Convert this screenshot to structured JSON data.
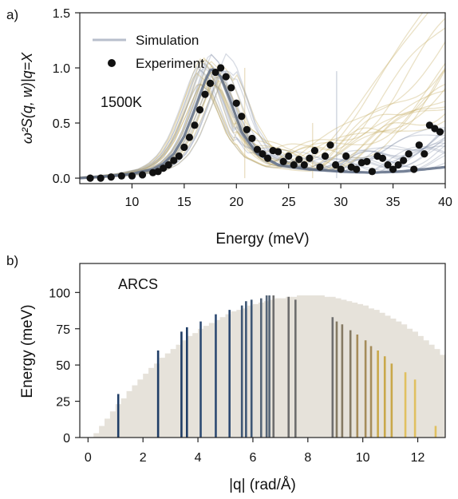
{
  "chart_data": [
    {
      "panel_label": "a)",
      "type": "line",
      "xlabel": "Energy (meV)",
      "ylabel": "ω²S(q, w)|q=X",
      "xlim": [
        5,
        40
      ],
      "ylim": [
        -0.05,
        1.5
      ],
      "xticks": [
        10,
        15,
        20,
        25,
        30,
        35,
        40
      ],
      "yticks": [
        0.0,
        0.5,
        1.0,
        1.5
      ],
      "ytick_labels": [
        "0.0",
        "0.5",
        "1.0",
        "1.5"
      ],
      "annotation": "1500K",
      "legend": {
        "position": "top-left",
        "entries": [
          {
            "label": "Simulation",
            "marker": "line",
            "color": "#b8bfcc"
          },
          {
            "label": "Experiment",
            "marker": "dot",
            "color": "#111111"
          }
        ]
      },
      "colors": {
        "blue_curves": "#8290a8",
        "gold_curves": "#c9b06a",
        "main_curve": "#5f6d86",
        "points": "#111111"
      },
      "series": [
        {
          "name": "Simulation",
          "x": [
            5,
            8,
            10,
            12,
            13,
            14,
            15,
            16,
            17,
            17.6,
            18.5,
            19.5,
            20.5,
            22,
            24,
            27,
            30,
            33,
            36,
            40
          ],
          "y": [
            0.0,
            0.02,
            0.04,
            0.08,
            0.13,
            0.22,
            0.38,
            0.62,
            0.88,
            1.0,
            0.92,
            0.68,
            0.42,
            0.22,
            0.12,
            0.08,
            0.06,
            0.05,
            0.06,
            0.1
          ]
        },
        {
          "name": "Experiment",
          "x": [
            6,
            7,
            8,
            9,
            10,
            11,
            12,
            12.5,
            13,
            13.5,
            14,
            14.5,
            15,
            15.5,
            16,
            16.5,
            17,
            17.5,
            18,
            18.5,
            19,
            19.5,
            20,
            20.5,
            21,
            21.5,
            22,
            22.5,
            23,
            23.5,
            24,
            24.5,
            25,
            25.5,
            26,
            26.5,
            27,
            27.5,
            28,
            28.5,
            29,
            29.5,
            30,
            30.5,
            31,
            31.5,
            32,
            32.5,
            33,
            33.5,
            34,
            34.5,
            35,
            35.5,
            36,
            36.5,
            37,
            37.5,
            38,
            38.5,
            39,
            39.5
          ],
          "y": [
            0.0,
            0.0,
            0.01,
            0.02,
            0.02,
            0.03,
            0.05,
            0.06,
            0.09,
            0.12,
            0.16,
            0.2,
            0.28,
            0.37,
            0.48,
            0.62,
            0.76,
            0.86,
            0.96,
            1.0,
            0.92,
            0.82,
            0.68,
            0.56,
            0.44,
            0.36,
            0.26,
            0.22,
            0.18,
            0.25,
            0.24,
            0.15,
            0.2,
            0.12,
            0.17,
            0.12,
            0.18,
            0.25,
            0.1,
            0.2,
            0.3,
            0.12,
            0.08,
            0.2,
            0.1,
            0.08,
            0.14,
            0.15,
            0.06,
            0.2,
            0.18,
            0.12,
            0.08,
            0.12,
            0.16,
            0.22,
            0.08,
            0.3,
            0.22,
            0.48,
            0.45,
            0.42
          ]
        }
      ]
    },
    {
      "panel_label": "b)",
      "type": "bar",
      "xlabel": "|q| (rad/Å)",
      "ylabel": "Energy (meV)",
      "xlim": [
        -0.3,
        13
      ],
      "ylim": [
        0,
        120
      ],
      "xticks": [
        0,
        2,
        4,
        6,
        8,
        10,
        12
      ],
      "yticks": [
        0,
        25,
        50,
        75,
        100
      ],
      "annotation": "ARCS",
      "coverage_color": "#e6e2da",
      "coverage": {
        "x_start": 0.2,
        "x_step": 0.2,
        "values": [
          3,
          8,
          13,
          18,
          23,
          27,
          32,
          36,
          40,
          44,
          48,
          51,
          55,
          58,
          61,
          64,
          67,
          70,
          72,
          75,
          77,
          79,
          81,
          83,
          85,
          87,
          88,
          89,
          91,
          92,
          93,
          94,
          95,
          96,
          96,
          97,
          97,
          98,
          98,
          98,
          98,
          98,
          97,
          97,
          96,
          95,
          94,
          93,
          92,
          91,
          89,
          88,
          86,
          84,
          82,
          80,
          78,
          75,
          73,
          70,
          67,
          64,
          61,
          57,
          53,
          50,
          46,
          42,
          37,
          32,
          27,
          22,
          17,
          11,
          6,
          3
        ]
      },
      "lines": {
        "colors": [
          "#1f3d66",
          "#2d4a72",
          "#3f5876",
          "#556578",
          "#6e6e6e",
          "#857a64",
          "#a58c5a",
          "#c9a84a",
          "#e0c060"
        ],
        "x": [
          1.1,
          2.55,
          3.4,
          3.6,
          4.1,
          4.65,
          5.15,
          5.6,
          5.75,
          5.95,
          6.3,
          6.5,
          6.6,
          6.75,
          7.3,
          7.55,
          8.9,
          9.05,
          9.25,
          9.55,
          9.8,
          10.1,
          10.3,
          10.55,
          10.8,
          11.05,
          11.55,
          11.9,
          12.65
        ],
        "heights": [
          30,
          60,
          73,
          76,
          80,
          85,
          88,
          91,
          94,
          95,
          96,
          98,
          98,
          98,
          97,
          95,
          83,
          80,
          78,
          74,
          71,
          67,
          63,
          60,
          56,
          51,
          45,
          40,
          8
        ]
      }
    }
  ]
}
